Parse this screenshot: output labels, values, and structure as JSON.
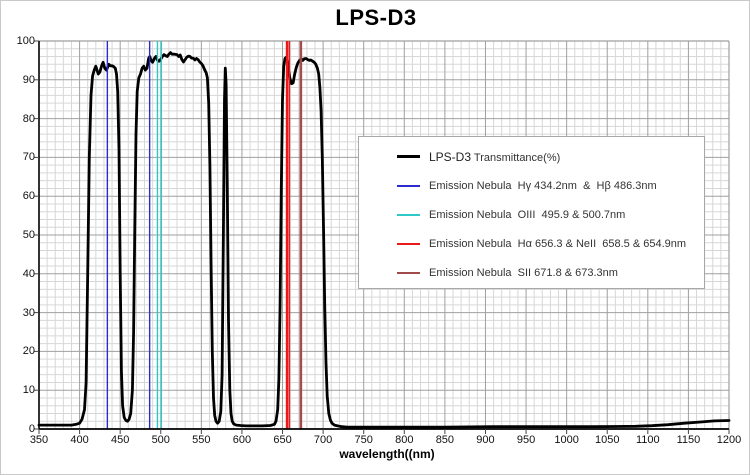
{
  "figure_title": "LPS-D3",
  "axes": {
    "x_label": "wavelength((nm)",
    "x_ticks": [
      350,
      400,
      450,
      500,
      550,
      600,
      650,
      700,
      750,
      800,
      850,
      900,
      950,
      1000,
      1050,
      1100,
      1150,
      1200
    ],
    "y_ticks": [
      0,
      10,
      20,
      30,
      40,
      50,
      60,
      70,
      80,
      90,
      100
    ]
  },
  "legend": {
    "entries": [
      {
        "label_primary": "LPS-D3",
        "label_secondary": " Transmittance(%)",
        "color": "#000000"
      },
      {
        "label": "Emission Nebula  Hγ 434.2nm  &  Hβ 486.3nm",
        "color": "#2B2BCE"
      },
      {
        "label": "Emission Nebula  OIII  495.9 & 500.7nm",
        "color": "#2FC8C8"
      },
      {
        "label": "Emission Nebula  Hα 656.3 & NeII  658.5 & 654.9nm",
        "color": "#E81A1A"
      },
      {
        "label": "Emission Nebula  SII 671.8 & 673.3nm",
        "color": "#A04A4A"
      }
    ]
  },
  "chart_data": {
    "type": "line",
    "title": "LPS-D3",
    "xlabel": "wavelength((nm)",
    "ylabel": "",
    "xlim": [
      350,
      1200
    ],
    "ylim": [
      0,
      100
    ],
    "x_major_step": 50,
    "x_minor_step": 10,
    "y_major_step": 10,
    "y_minor_step": 2,
    "grid": {
      "major_color": "#9f9f9f",
      "minor_color": "#d7d7d7",
      "on": true
    },
    "legend_position": "center-right",
    "series": [
      {
        "name": "LPS-D3 Transmittance(%)",
        "color": "#000000",
        "width": 2.8,
        "points": [
          [
            350,
            1
          ],
          [
            360,
            1
          ],
          [
            370,
            1
          ],
          [
            380,
            1
          ],
          [
            390,
            1
          ],
          [
            396,
            1.2
          ],
          [
            400,
            1.5
          ],
          [
            403,
            2.5
          ],
          [
            406,
            5
          ],
          [
            408,
            12
          ],
          [
            410,
            40
          ],
          [
            412,
            70
          ],
          [
            414,
            86
          ],
          [
            416,
            91
          ],
          [
            418,
            92.5
          ],
          [
            420,
            93.5
          ],
          [
            421.5,
            92.5
          ],
          [
            423,
            91.5
          ],
          [
            425,
            92
          ],
          [
            427,
            93.5
          ],
          [
            429,
            94.5
          ],
          [
            431,
            93
          ],
          [
            433,
            92.5
          ],
          [
            434.5,
            93.2
          ],
          [
            436,
            94
          ],
          [
            438,
            93.6
          ],
          [
            440,
            93.6
          ],
          [
            442,
            93.4
          ],
          [
            444,
            93
          ],
          [
            445.5,
            91.5
          ],
          [
            447,
            87
          ],
          [
            448.5,
            72
          ],
          [
            450,
            40
          ],
          [
            451.5,
            15
          ],
          [
            453,
            6
          ],
          [
            455,
            3
          ],
          [
            457,
            2.2
          ],
          [
            459,
            2
          ],
          [
            461,
            2.5
          ],
          [
            463,
            4
          ],
          [
            465,
            10
          ],
          [
            466.5,
            25
          ],
          [
            468,
            52
          ],
          [
            469.5,
            76
          ],
          [
            471,
            87
          ],
          [
            473,
            90.5
          ],
          [
            475,
            91.5
          ],
          [
            477,
            93
          ],
          [
            479,
            93.5
          ],
          [
            481,
            92.5
          ],
          [
            483,
            93
          ],
          [
            485,
            95.5
          ],
          [
            486.5,
            96
          ],
          [
            488,
            95
          ],
          [
            490,
            94.5
          ],
          [
            492,
            95.5
          ],
          [
            494,
            96
          ],
          [
            496,
            95
          ],
          [
            498,
            94.8
          ],
          [
            500,
            95.3
          ],
          [
            502,
            96
          ],
          [
            504,
            96.5
          ],
          [
            506,
            96.2
          ],
          [
            508,
            96
          ],
          [
            510,
            96.6
          ],
          [
            512,
            97
          ],
          [
            514,
            96.6
          ],
          [
            517,
            96.6
          ],
          [
            520,
            96.5
          ],
          [
            522,
            96
          ],
          [
            524,
            96.4
          ],
          [
            526,
            95.2
          ],
          [
            528,
            94.6
          ],
          [
            530,
            95.2
          ],
          [
            532,
            95.8
          ],
          [
            534,
            96.1
          ],
          [
            536,
            96
          ],
          [
            538,
            95.6
          ],
          [
            540,
            95.6
          ],
          [
            542,
            95.1
          ],
          [
            544,
            95.5
          ],
          [
            546,
            95.2
          ],
          [
            548,
            94.6
          ],
          [
            550,
            94.2
          ],
          [
            552,
            93.6
          ],
          [
            554,
            92.6
          ],
          [
            556,
            91.8
          ],
          [
            557.5,
            90.5
          ],
          [
            559,
            84
          ],
          [
            560.5,
            68
          ],
          [
            562,
            42
          ],
          [
            563.5,
            20
          ],
          [
            565,
            8
          ],
          [
            566.5,
            3.5
          ],
          [
            568,
            2
          ],
          [
            570,
            1.5
          ],
          [
            572,
            2
          ],
          [
            574,
            4.5
          ],
          [
            575.5,
            14
          ],
          [
            577,
            48
          ],
          [
            578.5,
            85
          ],
          [
            579.5,
            93
          ],
          [
            580.5,
            89
          ],
          [
            582,
            62
          ],
          [
            583.5,
            28
          ],
          [
            585,
            10
          ],
          [
            586.5,
            4
          ],
          [
            588,
            2
          ],
          [
            590,
            1.3
          ],
          [
            593,
            1
          ],
          [
            598,
            0.9
          ],
          [
            605,
            0.8
          ],
          [
            615,
            0.8
          ],
          [
            625,
            0.8
          ],
          [
            635,
            0.9
          ],
          [
            640,
            1.2
          ],
          [
            642,
            2
          ],
          [
            644,
            5
          ],
          [
            645.5,
            13
          ],
          [
            647,
            32
          ],
          [
            648.5,
            62
          ],
          [
            650,
            85
          ],
          [
            651.5,
            93.5
          ],
          [
            653,
            95.5
          ],
          [
            654.5,
            95.8
          ],
          [
            656,
            94.8
          ],
          [
            657.5,
            92.5
          ],
          [
            659,
            90.5
          ],
          [
            661,
            89
          ],
          [
            663,
            89.2
          ],
          [
            665,
            91.5
          ],
          [
            667,
            93.2
          ],
          [
            669,
            94.4
          ],
          [
            671,
            95
          ],
          [
            673,
            95.4
          ],
          [
            675,
            95
          ],
          [
            677,
            95.4
          ],
          [
            679,
            95.5
          ],
          [
            681,
            95.2
          ],
          [
            683,
            95
          ],
          [
            685,
            95.1
          ],
          [
            687,
            94.8
          ],
          [
            689,
            94.5
          ],
          [
            691,
            94
          ],
          [
            693,
            93
          ],
          [
            694.5,
            91.5
          ],
          [
            696,
            88
          ],
          [
            697.5,
            82
          ],
          [
            699,
            70
          ],
          [
            700.5,
            52
          ],
          [
            702,
            32
          ],
          [
            703.5,
            17
          ],
          [
            705,
            8.5
          ],
          [
            707,
            4
          ],
          [
            709,
            2.3
          ],
          [
            711,
            1.5
          ],
          [
            714,
            1
          ],
          [
            718,
            0.8
          ],
          [
            723,
            0.6
          ],
          [
            730,
            0.5
          ],
          [
            745,
            0.5
          ],
          [
            765,
            0.5
          ],
          [
            790,
            0.5
          ],
          [
            820,
            0.5
          ],
          [
            850,
            0.5
          ],
          [
            880,
            0.55
          ],
          [
            910,
            0.6
          ],
          [
            940,
            0.6
          ],
          [
            970,
            0.6
          ],
          [
            1000,
            0.6
          ],
          [
            1030,
            0.6
          ],
          [
            1060,
            0.65
          ],
          [
            1085,
            0.7
          ],
          [
            1105,
            0.85
          ],
          [
            1125,
            1.1
          ],
          [
            1145,
            1.5
          ],
          [
            1165,
            1.8
          ],
          [
            1182,
            2.1
          ],
          [
            1200,
            2.2
          ]
        ]
      }
    ],
    "emission_lines": [
      {
        "name": "Hgamma-Hbeta",
        "color": "#2B2BCE",
        "wavelengths": [
          434.2,
          486.3
        ]
      },
      {
        "name": "OIII",
        "color": "#2FC8C8",
        "wavelengths": [
          495.9,
          500.7
        ]
      },
      {
        "name": "Halpha-NeII",
        "color": "#E81A1A",
        "wavelengths": [
          654.9,
          656.3,
          658.5
        ]
      },
      {
        "name": "SII",
        "color": "#A04A4A",
        "wavelengths": [
          671.8,
          673.3
        ]
      }
    ]
  }
}
